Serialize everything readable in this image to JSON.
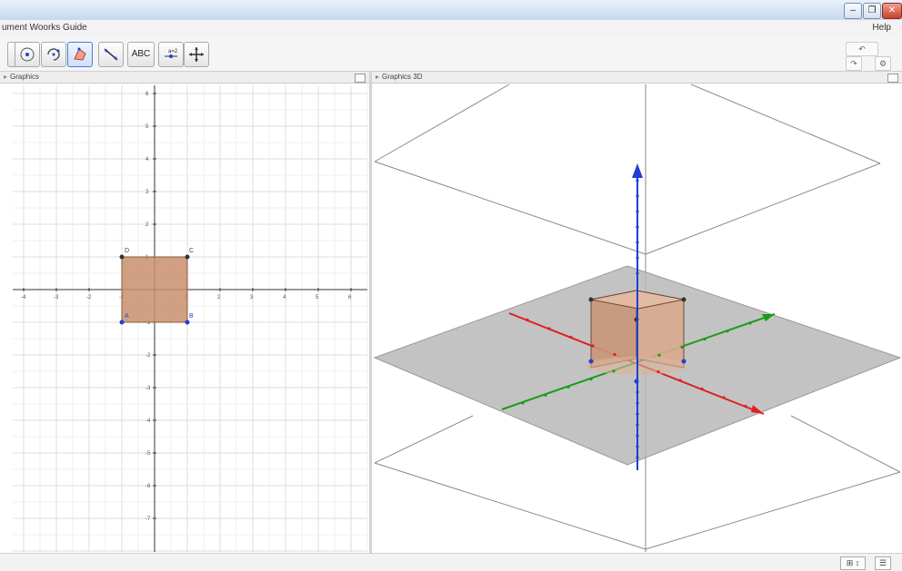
{
  "window": {
    "title": "",
    "controls": [
      "–",
      "❐",
      "✕"
    ]
  },
  "menubar": {
    "menus": "ument Woorks Guide",
    "help": "Help"
  },
  "toolbar": {
    "tools": [
      {
        "name": "point-tool",
        "label": ""
      },
      {
        "name": "rotate-tool",
        "label": ""
      },
      {
        "name": "polygon-tool",
        "label": ""
      },
      {
        "name": "line-tool",
        "label": ""
      },
      {
        "name": "text-tool",
        "label": "ABC"
      },
      {
        "name": "slider-tool",
        "label": ""
      },
      {
        "name": "move-view-tool",
        "label": ""
      }
    ],
    "undo_label": "↶",
    "redo_label": "↷"
  },
  "views": {
    "graphics_title": "Graphics",
    "graphics3d_title": "Graphics 3D"
  },
  "graphics2d": {
    "x_ticks": [
      "-4",
      "-3",
      "-2",
      "-1",
      "0",
      "1",
      "2",
      "3",
      "4",
      "5",
      "6"
    ],
    "y_ticks_pos": [
      "6",
      "5",
      "4",
      "3",
      "2",
      "1"
    ],
    "y_ticks_neg": [
      "-1",
      "-2",
      "-3",
      "-4",
      "-5",
      "-6",
      "-7"
    ],
    "points": {
      "A": "A",
      "B": "B",
      "C": "C",
      "D": "D"
    },
    "square_color": "#c98e6c"
  },
  "graphics3d": {
    "plane_color": "#b9b9b9",
    "cube_color": "#c9977a",
    "axis_colors": {
      "x": "#e02020",
      "y": "#1a9c1a",
      "z": "#1f3fd6"
    }
  },
  "statusbar": {
    "buttons": [
      "⊞ ↕",
      "☰"
    ]
  }
}
